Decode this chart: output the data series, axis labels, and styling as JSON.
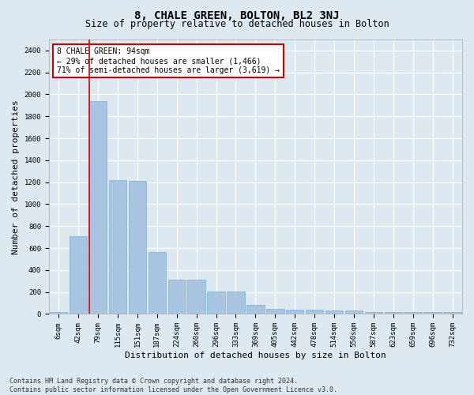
{
  "title": "8, CHALE GREEN, BOLTON, BL2 3NJ",
  "subtitle": "Size of property relative to detached houses in Bolton",
  "xlabel": "Distribution of detached houses by size in Bolton",
  "ylabel": "Number of detached properties",
  "categories": [
    "6sqm",
    "42sqm",
    "79sqm",
    "115sqm",
    "151sqm",
    "187sqm",
    "224sqm",
    "260sqm",
    "296sqm",
    "333sqm",
    "369sqm",
    "405sqm",
    "442sqm",
    "478sqm",
    "514sqm",
    "550sqm",
    "587sqm",
    "623sqm",
    "659sqm",
    "696sqm",
    "732sqm"
  ],
  "values": [
    15,
    710,
    1940,
    1220,
    1215,
    565,
    310,
    310,
    205,
    205,
    85,
    50,
    40,
    40,
    35,
    35,
    20,
    20,
    15,
    15,
    20
  ],
  "bar_color": "#a8c4e0",
  "bar_edge_color": "#7aafd4",
  "background_color": "#dde8f0",
  "grid_color": "#ffffff",
  "vline_color": "#cc0000",
  "annotation_text": "8 CHALE GREEN: 94sqm\n← 29% of detached houses are smaller (1,466)\n71% of semi-detached houses are larger (3,619) →",
  "annotation_box_color": "#ffffff",
  "annotation_box_edge_color": "#cc0000",
  "ylim": [
    0,
    2500
  ],
  "yticks": [
    0,
    200,
    400,
    600,
    800,
    1000,
    1200,
    1400,
    1600,
    1800,
    2000,
    2200,
    2400
  ],
  "footer": "Contains HM Land Registry data © Crown copyright and database right 2024.\nContains public sector information licensed under the Open Government Licence v3.0.",
  "title_fontsize": 10,
  "subtitle_fontsize": 8.5,
  "label_fontsize": 8,
  "tick_fontsize": 6.5,
  "annotation_fontsize": 7,
  "footer_fontsize": 6
}
